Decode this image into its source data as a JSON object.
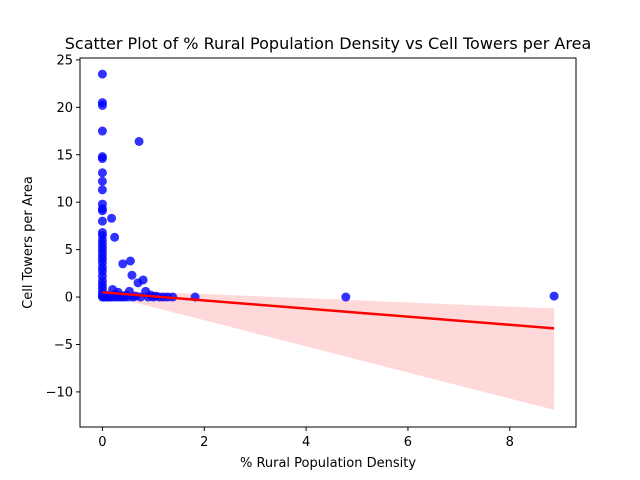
{
  "chart_data": {
    "type": "scatter",
    "title": "Scatter Plot of % Rural Population Density vs Cell Towers per Area",
    "xlabel": "% Rural Population Density",
    "ylabel": "Cell Towers per Area",
    "xlim": [
      -0.44,
      9.3
    ],
    "ylim": [
      -13.7,
      25.2
    ],
    "xticks": [
      0,
      2,
      4,
      6,
      8
    ],
    "yticks": [
      -10,
      -5,
      0,
      5,
      10,
      15,
      20,
      25
    ],
    "ytick_labels": [
      "−10",
      "−5",
      "0",
      "5",
      "10",
      "15",
      "20",
      "25"
    ],
    "grid": false,
    "point_color": "#0000ff",
    "line_color": "#ff0000",
    "band_color": "#ffcccc",
    "regression": {
      "x": [
        0,
        8.87
      ],
      "y": [
        0.5,
        -3.3
      ],
      "ci_upper": [
        0.75,
        -1.2
      ],
      "ci_lower": [
        0.3,
        -11.9
      ]
    },
    "points": [
      {
        "x": 0.0,
        "y": 23.5
      },
      {
        "x": 0.0,
        "y": 20.5
      },
      {
        "x": 0.0,
        "y": 20.2
      },
      {
        "x": 0.0,
        "y": 17.5
      },
      {
        "x": 0.0,
        "y": 14.8
      },
      {
        "x": 0.0,
        "y": 14.6
      },
      {
        "x": 0.0,
        "y": 13.1
      },
      {
        "x": 0.0,
        "y": 12.2
      },
      {
        "x": 0.0,
        "y": 11.3
      },
      {
        "x": 0.0,
        "y": 9.8
      },
      {
        "x": 0.0,
        "y": 9.3
      },
      {
        "x": 0.0,
        "y": 9.1
      },
      {
        "x": 0.0,
        "y": 8.0
      },
      {
        "x": 0.0,
        "y": 6.8
      },
      {
        "x": 0.0,
        "y": 6.5
      },
      {
        "x": 0.0,
        "y": 6.0
      },
      {
        "x": 0.0,
        "y": 5.6
      },
      {
        "x": 0.0,
        "y": 5.2
      },
      {
        "x": 0.0,
        "y": 4.8
      },
      {
        "x": 0.0,
        "y": 4.4
      },
      {
        "x": 0.0,
        "y": 4.0
      },
      {
        "x": 0.0,
        "y": 3.6
      },
      {
        "x": 0.0,
        "y": 3.1
      },
      {
        "x": 0.0,
        "y": 2.7
      },
      {
        "x": 0.0,
        "y": 2.2
      },
      {
        "x": 0.0,
        "y": 1.7
      },
      {
        "x": 0.0,
        "y": 1.3
      },
      {
        "x": 0.0,
        "y": 0.9
      },
      {
        "x": 0.0,
        "y": 0.5
      },
      {
        "x": 0.0,
        "y": 0.2
      },
      {
        "x": 0.0,
        "y": 0.0
      },
      {
        "x": 0.02,
        "y": 0.1
      },
      {
        "x": 0.03,
        "y": 0.0
      },
      {
        "x": 0.05,
        "y": 0.0
      },
      {
        "x": 0.07,
        "y": 0.2
      },
      {
        "x": 0.09,
        "y": 0.0
      },
      {
        "x": 0.11,
        "y": 0.1
      },
      {
        "x": 0.14,
        "y": 0.0
      },
      {
        "x": 0.16,
        "y": 0.0
      },
      {
        "x": 0.18,
        "y": 8.3
      },
      {
        "x": 0.2,
        "y": 0.8
      },
      {
        "x": 0.22,
        "y": 0.0
      },
      {
        "x": 0.24,
        "y": 6.3
      },
      {
        "x": 0.26,
        "y": 0.3
      },
      {
        "x": 0.28,
        "y": 0.0
      },
      {
        "x": 0.31,
        "y": 0.5
      },
      {
        "x": 0.33,
        "y": 0.0
      },
      {
        "x": 0.36,
        "y": 0.1
      },
      {
        "x": 0.39,
        "y": 0.0
      },
      {
        "x": 0.4,
        "y": 3.5
      },
      {
        "x": 0.43,
        "y": 0.0
      },
      {
        "x": 0.46,
        "y": 0.2
      },
      {
        "x": 0.5,
        "y": 0.0
      },
      {
        "x": 0.53,
        "y": 0.6
      },
      {
        "x": 0.55,
        "y": 3.8
      },
      {
        "x": 0.58,
        "y": 2.3
      },
      {
        "x": 0.6,
        "y": 0.0
      },
      {
        "x": 0.65,
        "y": 0.1
      },
      {
        "x": 0.7,
        "y": 1.5
      },
      {
        "x": 0.72,
        "y": 16.4
      },
      {
        "x": 0.75,
        "y": 0.0
      },
      {
        "x": 0.8,
        "y": 1.8
      },
      {
        "x": 0.85,
        "y": 0.6
      },
      {
        "x": 0.9,
        "y": 0.0
      },
      {
        "x": 0.95,
        "y": 0.2
      },
      {
        "x": 1.0,
        "y": 0.0
      },
      {
        "x": 1.05,
        "y": 0.1
      },
      {
        "x": 1.12,
        "y": 0.0
      },
      {
        "x": 1.2,
        "y": 0.0
      },
      {
        "x": 1.28,
        "y": 0.0
      },
      {
        "x": 1.38,
        "y": 0.0
      },
      {
        "x": 1.82,
        "y": 0.0
      },
      {
        "x": 4.78,
        "y": 0.0
      },
      {
        "x": 8.87,
        "y": 0.1
      }
    ]
  }
}
